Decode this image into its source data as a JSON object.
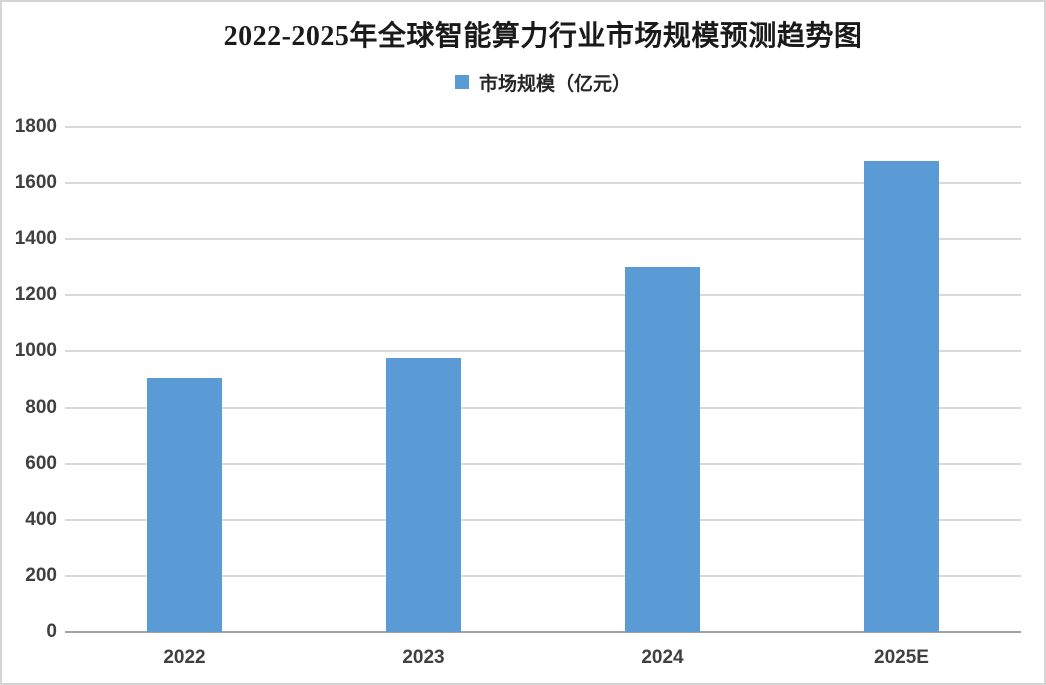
{
  "chart_data": {
    "type": "bar",
    "title": "2022-2025年全球智能算力行业市场规模预测趋势图",
    "legend": "市场规模（亿元）",
    "series_name": "市场规模（亿元）",
    "categories": [
      "2022",
      "2023",
      "2024",
      "2025E"
    ],
    "values": [
      905,
      975,
      1300,
      1680
    ],
    "xlabel": "",
    "ylabel": "",
    "ylim": [
      0,
      1800
    ],
    "ytick_step": 200,
    "ytick_labels": [
      "0",
      "200",
      "400",
      "600",
      "800",
      "1000",
      "1200",
      "1400",
      "1600",
      "1800"
    ],
    "grid": true,
    "legend_position": "top-center"
  },
  "colors": {
    "bar": "#5B9BD5",
    "gridline": "#D9D9D9",
    "axis_line": "#A3A3A3",
    "tick_label": "#404040",
    "title": "#1A1A1A",
    "legend_text": "#262626",
    "background": "#FFFFFF",
    "border": "#D5D5D5"
  }
}
